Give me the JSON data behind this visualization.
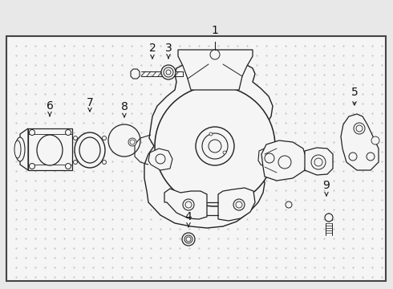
{
  "bg_color": "#e8e8e8",
  "box_color": "#f5f5f5",
  "box_border_color": "#444444",
  "line_color": "#222222",
  "text_color": "#111111",
  "dot_color": "#bbbbbb",
  "font_size": 10,
  "lw": 0.9
}
